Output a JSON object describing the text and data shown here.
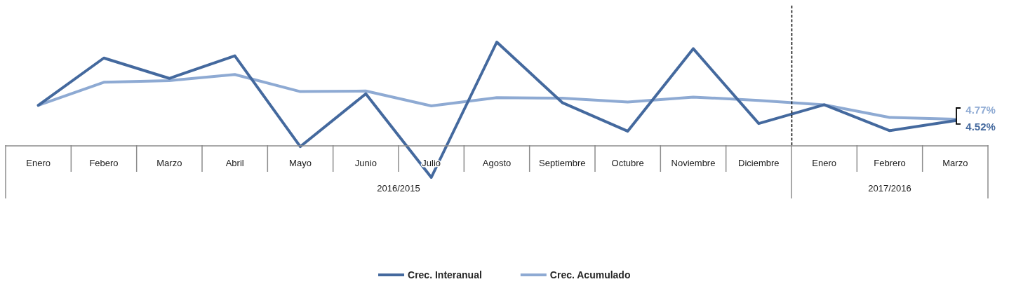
{
  "chart_data": {
    "type": "line",
    "categories": [
      "Enero",
      "Febero",
      "Marzo",
      "Abril",
      "Mayo",
      "Junio",
      "Julio",
      "Agosto",
      "Septiembre",
      "Octubre",
      "Noviembre",
      "Diciembre",
      "Enero",
      "Febrero",
      "Marzo"
    ],
    "series": [
      {
        "name": "Crec. Interanual",
        "color": "#44699e",
        "values": [
          7.3,
          15.9,
          12.2,
          16.3,
          -0.2,
          9.4,
          -5.8,
          18.8,
          7.8,
          2.6,
          17.6,
          4,
          7.4,
          2.7,
          4.52
        ],
        "value_labels": [
          null,
          null,
          null,
          null,
          null,
          null,
          null,
          null,
          null,
          null,
          null,
          null,
          null,
          null,
          "4.52%"
        ]
      },
      {
        "name": "Crec. Acumulado",
        "color": "#8eaad3",
        "values": [
          7.3,
          11.5,
          11.8,
          12.9,
          9.8,
          9.9,
          7.2,
          8.7,
          8.6,
          7.9,
          8.8,
          8.2,
          7.4,
          5.1,
          4.77
        ],
        "value_labels": [
          null,
          null,
          null,
          null,
          null,
          null,
          null,
          null,
          null,
          null,
          null,
          null,
          null,
          null,
          "4.77%"
        ]
      }
    ],
    "tick_labels": "x",
    "legend": "bottom",
    "marker": "none",
    "annotations": [
      "2016/2015",
      "2017/2016"
    ]
  }
}
